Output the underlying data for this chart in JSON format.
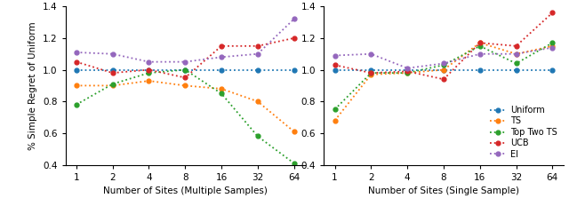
{
  "x_ticks": [
    1,
    2,
    4,
    8,
    16,
    32,
    64
  ],
  "x_labels": [
    "1",
    "2",
    "4",
    "8",
    "16",
    "32",
    "64"
  ],
  "left_xlabel": "Number of Sites (Multiple Samples)",
  "right_xlabel": "Number of Sites (Single Sample)",
  "ylabel": "% Simple Regret of Uniform",
  "left": {
    "Uniform": [
      1.0,
      1.0,
      1.0,
      1.0,
      1.0,
      1.0,
      1.0
    ],
    "TS": [
      0.9,
      0.9,
      0.93,
      0.9,
      0.88,
      0.8,
      0.61
    ],
    "Top Two TS": [
      0.78,
      0.91,
      0.98,
      1.0,
      0.85,
      0.58,
      0.41
    ],
    "UCB": [
      1.05,
      0.98,
      1.0,
      0.95,
      1.15,
      1.15,
      1.2
    ],
    "EI": [
      1.11,
      1.1,
      1.05,
      1.05,
      1.08,
      1.1,
      1.32
    ]
  },
  "right": {
    "Uniform": [
      1.0,
      1.0,
      1.0,
      1.0,
      1.0,
      1.0,
      1.0
    ],
    "TS": [
      0.68,
      0.97,
      0.98,
      1.0,
      1.17,
      1.1,
      1.15
    ],
    "Top Two TS": [
      0.75,
      0.98,
      0.98,
      1.03,
      1.15,
      1.04,
      1.17
    ],
    "UCB": [
      1.03,
      0.98,
      0.99,
      0.94,
      1.17,
      1.15,
      1.36
    ],
    "EI": [
      1.09,
      1.1,
      1.01,
      1.04,
      1.1,
      1.1,
      1.14
    ]
  },
  "colors": {
    "Uniform": "#1f77b4",
    "TS": "#ff7f0e",
    "Top Two TS": "#2ca02c",
    "UCB": "#d62728",
    "EI": "#9467bd"
  },
  "legend_order": [
    "Uniform",
    "TS",
    "Top Two TS",
    "UCB",
    "EI"
  ],
  "ylim": [
    0.4,
    1.4
  ],
  "yticks": [
    0.4,
    0.6,
    0.8,
    1.0,
    1.2,
    1.4
  ],
  "ytick_labels": [
    "0.4",
    "0.6",
    "0.8",
    "1.0",
    "1.2",
    "1.4"
  ]
}
